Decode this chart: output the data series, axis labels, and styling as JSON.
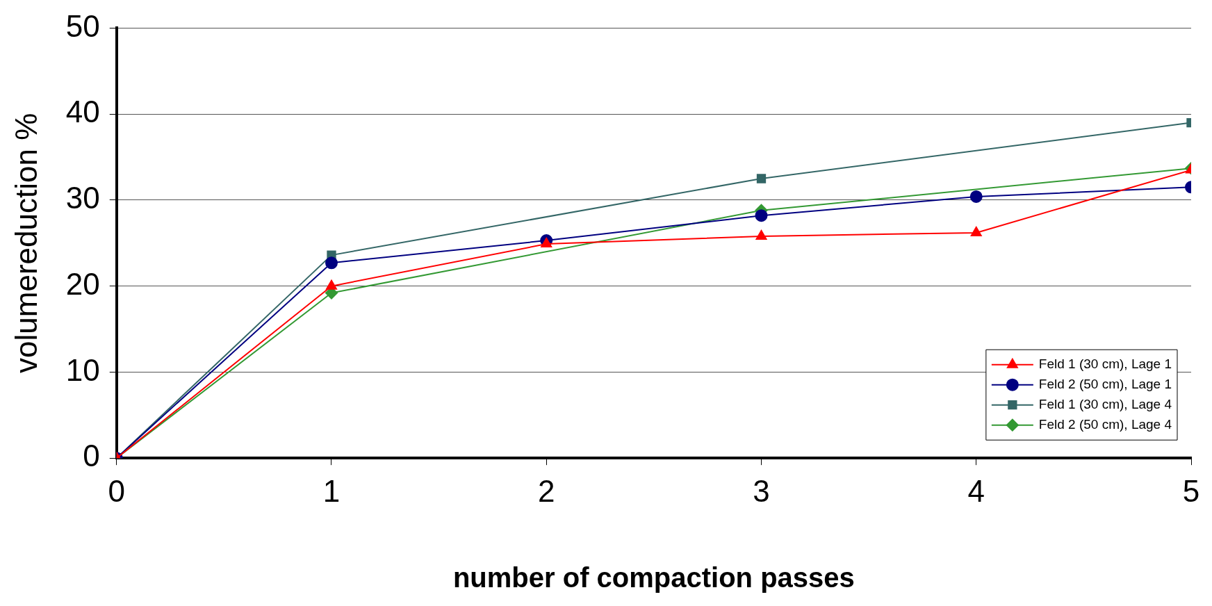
{
  "chart_data": {
    "type": "line",
    "xlabel": "number of compaction passes",
    "ylabel": "volumereduction %",
    "x": [
      0,
      1,
      2,
      3,
      4,
      5
    ],
    "xlim": [
      0,
      5
    ],
    "xticks": [
      0,
      1,
      2,
      3,
      4,
      5
    ],
    "ylim": [
      0,
      50
    ],
    "yticks": [
      0,
      10,
      20,
      30,
      40,
      50
    ],
    "grid": "y",
    "legend": "bottom right",
    "line_style": "solid",
    "series": [
      {
        "name": "Feld 1 (30 cm), Lage 1",
        "color": "#ff0000",
        "marker": "triangle",
        "values": [
          0,
          20.0,
          24.9,
          25.8,
          26.2,
          33.5
        ]
      },
      {
        "name": "Feld 2 (50 cm), Lage 1",
        "color": "#000080",
        "marker": "circle",
        "values": [
          0,
          22.7,
          25.3,
          28.2,
          30.4,
          31.5
        ]
      },
      {
        "name": "Feld 1 (30 cm), Lage 4",
        "color": "#336666",
        "marker": "square",
        "values": [
          0,
          23.6,
          null,
          32.5,
          null,
          39.0
        ]
      },
      {
        "name": "Feld 2 (50 cm), Lage 4",
        "color": "#339933",
        "marker": "diamond",
        "values": [
          0,
          19.2,
          null,
          28.8,
          null,
          33.7
        ]
      }
    ]
  }
}
